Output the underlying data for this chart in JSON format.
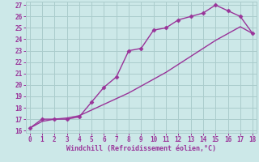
{
  "x": [
    0,
    1,
    2,
    3,
    4,
    5,
    6,
    7,
    8,
    9,
    10,
    11,
    12,
    13,
    14,
    15,
    16,
    17,
    18
  ],
  "upper_y": [
    16.2,
    17.0,
    17.0,
    17.0,
    17.2,
    18.5,
    19.8,
    20.7,
    23.0,
    23.2,
    24.8,
    25.0,
    25.7,
    26.0,
    26.3,
    27.0,
    26.5,
    26.0,
    24.5
  ],
  "lower_y": [
    16.2,
    16.8,
    17.0,
    17.1,
    17.3,
    17.8,
    18.3,
    18.8,
    19.3,
    19.9,
    20.5,
    21.1,
    21.8,
    22.5,
    23.2,
    23.9,
    24.5,
    25.1,
    24.5
  ],
  "color": "#993399",
  "bg_color": "#cce8e8",
  "grid_color": "#aacccc",
  "xlabel": "Windchill (Refroidissement éolien,°C)",
  "xlabel_color": "#993399",
  "xlim": [
    -0.3,
    18.3
  ],
  "ylim": [
    15.8,
    27.3
  ],
  "xticks": [
    0,
    1,
    2,
    3,
    4,
    5,
    6,
    7,
    8,
    9,
    10,
    11,
    12,
    13,
    14,
    15,
    16,
    17,
    18
  ],
  "yticks": [
    16,
    17,
    18,
    19,
    20,
    21,
    22,
    23,
    24,
    25,
    26,
    27
  ],
  "tick_color": "#993399",
  "marker": "D",
  "markersize": 2.5,
  "linewidth": 1.0
}
